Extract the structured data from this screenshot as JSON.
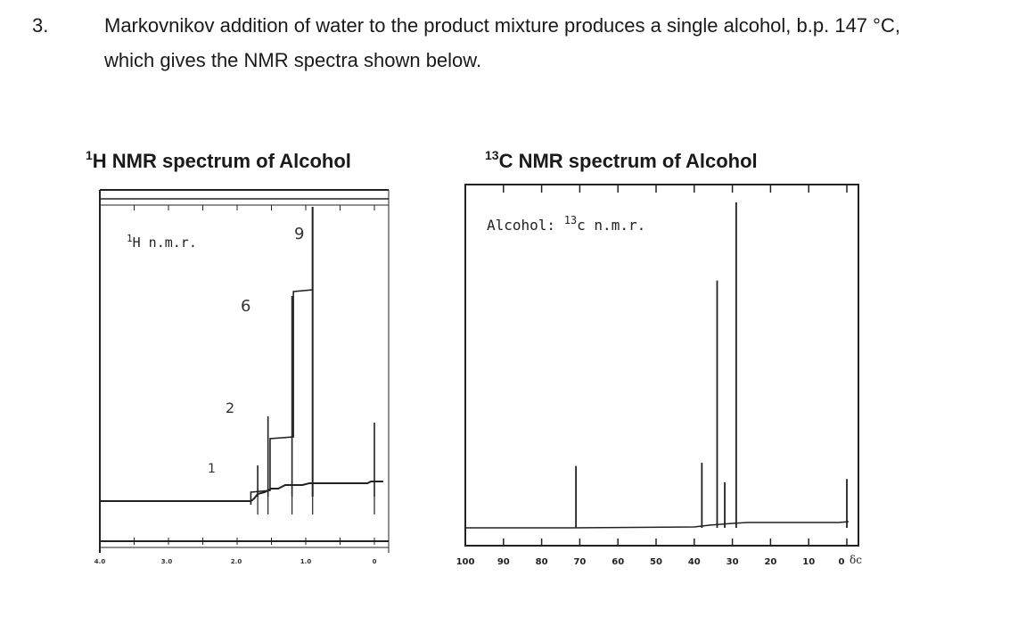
{
  "question": {
    "number": "3.",
    "line1": "Markovnikov addition of water to the product mixture produces a single alcohol, b.p. 147 °C,",
    "line2": "which gives the NMR spectra shown below."
  },
  "h_nmr": {
    "title_sup": "1",
    "title_rest": "H NMR spectrum of Alcohol",
    "inset_sup": "1",
    "inset_rest": "H n.m.r.",
    "annotations": [
      "9",
      "6",
      "2",
      "1"
    ],
    "x_ticks": [
      "4.0",
      "3.0",
      "2.0",
      "1.0",
      "0"
    ]
  },
  "c_nmr": {
    "title_sup": "13",
    "title_rest": "C NMR spectrum of Alcohol",
    "inset_prefix": "Alcohol: ",
    "inset_sup": "13",
    "inset_rest": "c n.m.r.",
    "x_ticks": [
      "100",
      "90",
      "80",
      "70",
      "60",
      "50",
      "40",
      "30",
      "20",
      "10",
      "0"
    ],
    "axis_unit": "δc"
  },
  "chart_data": [
    {
      "type": "line",
      "xlabel": "",
      "ylabel": "",
      "xlim": [
        4.0,
        0
      ],
      "peaks": [
        {
          "shift": 1.7,
          "label": "1"
        },
        {
          "shift": 1.55,
          "label": "2"
        },
        {
          "shift": 1.2,
          "label": "6"
        },
        {
          "shift": 0.9,
          "label": "9"
        },
        {
          "shift": 0.0,
          "label": ""
        }
      ]
    },
    {
      "type": "line",
      "xlabel": "",
      "ylabel": "",
      "xlim": [
        100,
        0
      ],
      "peaks": [
        {
          "shift": 71,
          "height": 0.19
        },
        {
          "shift": 38,
          "height": 0.2
        },
        {
          "shift": 34,
          "height": 0.76
        },
        {
          "shift": 32,
          "height": 0.14
        },
        {
          "shift": 29,
          "height": 1.0
        },
        {
          "shift": 0,
          "height": 0.15
        }
      ]
    }
  ]
}
